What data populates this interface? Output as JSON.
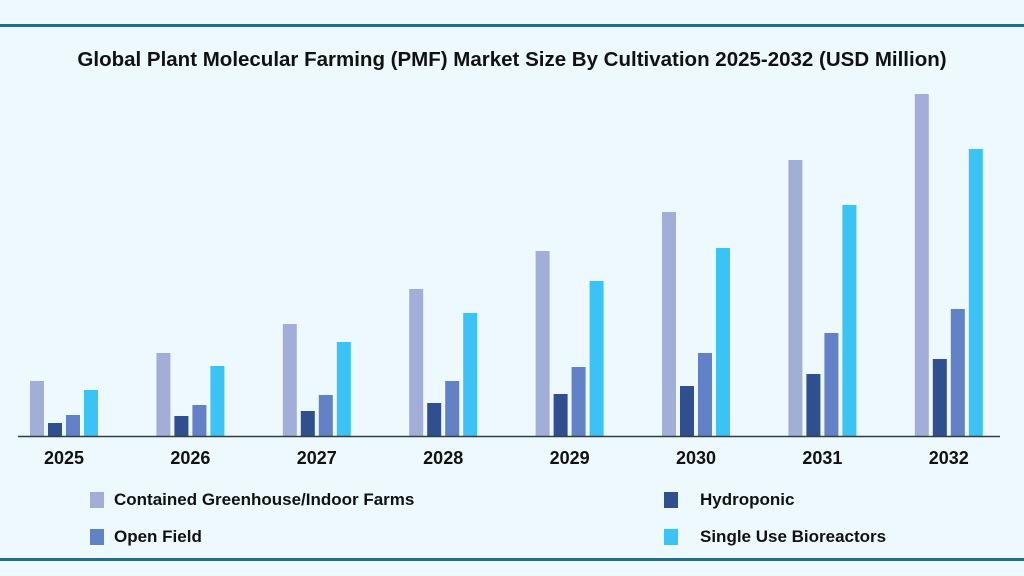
{
  "chart_data": {
    "type": "bar",
    "title": "Global Plant Molecular Farming (PMF) Market Size By Cultivation 2025-2032 (USD Million)",
    "xlabel": "",
    "ylabel": "",
    "categories": [
      "2025",
      "2026",
      "2027",
      "2028",
      "2029",
      "2030",
      "2031",
      "2032"
    ],
    "series": [
      {
        "name": "Contained Greenhouse/Indoor Farms",
        "color": "#a3aed8",
        "values": [
          55,
          83,
          112,
          147,
          185,
          224,
          276,
          342
        ]
      },
      {
        "name": "Hydroponic",
        "color": "#2f4f8f",
        "values": [
          13,
          20,
          25,
          33,
          42,
          50,
          62,
          77
        ]
      },
      {
        "name": "Open Field",
        "color": "#6381c6",
        "values": [
          21,
          31,
          41,
          55,
          69,
          83,
          103,
          127
        ]
      },
      {
        "name": "Single Use Bioreactors",
        "color": "#3cc3f5",
        "values": [
          46,
          70,
          94,
          123,
          155,
          188,
          231,
          287
        ]
      }
    ],
    "ylim": [
      0,
      345
    ],
    "grid": false,
    "y_axis_shown": false,
    "legend_placement": "bottom"
  }
}
